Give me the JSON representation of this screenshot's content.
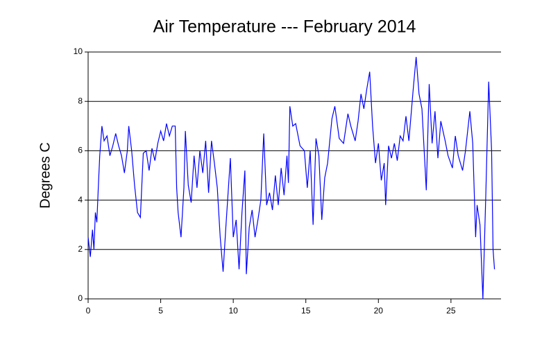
{
  "chart_data": {
    "type": "line",
    "title": "Air Temperature --- February 2014",
    "y_label": "Degrees C",
    "x": [
      0,
      0.15,
      0.3,
      0.4,
      0.5,
      0.6,
      0.7,
      0.8,
      0.95,
      1.1,
      1.3,
      1.5,
      1.7,
      1.9,
      2.1,
      2.3,
      2.5,
      2.7,
      2.8,
      3.0,
      3.2,
      3.4,
      3.6,
      3.8,
      4.0,
      4.2,
      4.4,
      4.6,
      4.8,
      5.0,
      5.2,
      5.4,
      5.6,
      5.8,
      6.0,
      6.1,
      6.2,
      6.4,
      6.6,
      6.7,
      6.9,
      7.1,
      7.3,
      7.5,
      7.7,
      7.9,
      8.1,
      8.3,
      8.5,
      8.7,
      8.9,
      9.1,
      9.3,
      9.5,
      9.8,
      10.0,
      10.2,
      10.4,
      10.6,
      10.8,
      10.9,
      11.1,
      11.3,
      11.5,
      11.7,
      11.9,
      12.1,
      12.3,
      12.5,
      12.7,
      12.9,
      13.1,
      13.3,
      13.5,
      13.7,
      13.8,
      13.9,
      14.1,
      14.3,
      14.6,
      14.9,
      15.1,
      15.3,
      15.5,
      15.7,
      15.9,
      16.1,
      16.3,
      16.5,
      16.8,
      17.0,
      17.3,
      17.6,
      17.9,
      18.1,
      18.4,
      18.6,
      18.8,
      19.0,
      19.2,
      19.4,
      19.6,
      19.8,
      20.0,
      20.2,
      20.4,
      20.5,
      20.7,
      20.9,
      21.1,
      21.3,
      21.5,
      21.7,
      21.9,
      22.1,
      22.3,
      22.4,
      22.6,
      22.8,
      23.0,
      23.3,
      23.5,
      23.7,
      23.9,
      24.1,
      24.3,
      24.6,
      24.8,
      25.1,
      25.3,
      25.5,
      25.8,
      26.0,
      26.3,
      26.5,
      26.7,
      26.8,
      27.0,
      27.2,
      27.4,
      27.6,
      27.8,
      27.9,
      28.0
    ],
    "series": [
      {
        "color": "#0000ff",
        "values": [
          2.5,
          1.7,
          2.8,
          2.0,
          3.5,
          3.1,
          4.5,
          5.8,
          7.0,
          6.4,
          6.6,
          5.8,
          6.2,
          6.7,
          6.2,
          5.8,
          5.1,
          6.0,
          7.0,
          6.0,
          4.6,
          3.5,
          3.3,
          5.9,
          6.0,
          5.2,
          6.1,
          5.6,
          6.3,
          6.8,
          6.4,
          7.1,
          6.6,
          7.0,
          7.0,
          4.5,
          3.5,
          2.5,
          4.5,
          6.8,
          4.6,
          3.9,
          5.8,
          4.5,
          6.0,
          5.1,
          6.4,
          4.3,
          6.4,
          5.5,
          4.5,
          2.5,
          1.1,
          3.0,
          5.7,
          2.5,
          3.2,
          1.2,
          3.5,
          5.2,
          1.0,
          2.9,
          3.6,
          2.5,
          3.2,
          4.0,
          6.7,
          3.8,
          4.3,
          3.6,
          5.0,
          3.8,
          5.3,
          4.2,
          5.8,
          4.7,
          7.8,
          7.0,
          7.1,
          6.2,
          6.0,
          4.5,
          6.0,
          3.0,
          6.5,
          5.8,
          3.2,
          4.9,
          5.5,
          7.3,
          7.8,
          6.5,
          6.3,
          7.5,
          7.0,
          6.4,
          7.2,
          8.3,
          7.7,
          8.5,
          9.2,
          7.0,
          5.5,
          6.3,
          4.8,
          5.5,
          3.8,
          6.2,
          5.7,
          6.3,
          5.6,
          6.6,
          6.4,
          7.4,
          6.4,
          7.8,
          8.5,
          9.8,
          8.3,
          7.7,
          4.4,
          8.7,
          6.3,
          7.6,
          5.7,
          7.2,
          6.4,
          5.8,
          5.3,
          6.6,
          5.8,
          5.2,
          6.0,
          7.6,
          6.3,
          2.5,
          3.8,
          3.0,
          0.0,
          4.2,
          8.8,
          6.0,
          2.0,
          1.2
        ]
      }
    ],
    "xlim": [
      0,
      28.45
    ],
    "xticks": [
      0,
      5,
      10,
      15,
      20,
      25
    ],
    "ylim": [
      0,
      10
    ],
    "yticks": [
      0,
      2,
      4,
      6,
      8,
      10
    ],
    "grid": true
  }
}
